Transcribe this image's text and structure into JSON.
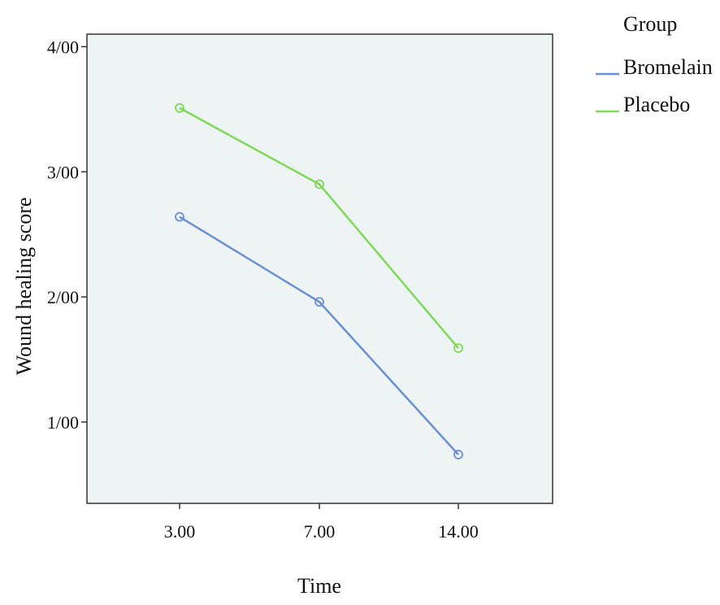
{
  "chart_data": {
    "type": "line",
    "title": "",
    "xlabel": "Time",
    "ylabel": "Wound healing score",
    "categories": [
      "3.00",
      "7.00",
      "14.00"
    ],
    "yticks": [
      {
        "value": 1,
        "label": "1/00"
      },
      {
        "value": 2,
        "label": "2/00"
      },
      {
        "value": 3,
        "label": "3/00"
      },
      {
        "value": 4,
        "label": "4/00"
      }
    ],
    "ylim": [
      0.35,
      4.1
    ],
    "grid": false,
    "legend": {
      "title": "Group",
      "placement": "top-right"
    },
    "series": [
      {
        "name": "Bromelain",
        "values": [
          2.64,
          1.96,
          0.74
        ],
        "color": "#6b8fd6"
      },
      {
        "name": "Placebo",
        "values": [
          3.51,
          2.9,
          1.59
        ],
        "color": "#7ed957"
      }
    ],
    "colors": {
      "plot_background": "#eef3f3",
      "frame": "#333333"
    }
  }
}
